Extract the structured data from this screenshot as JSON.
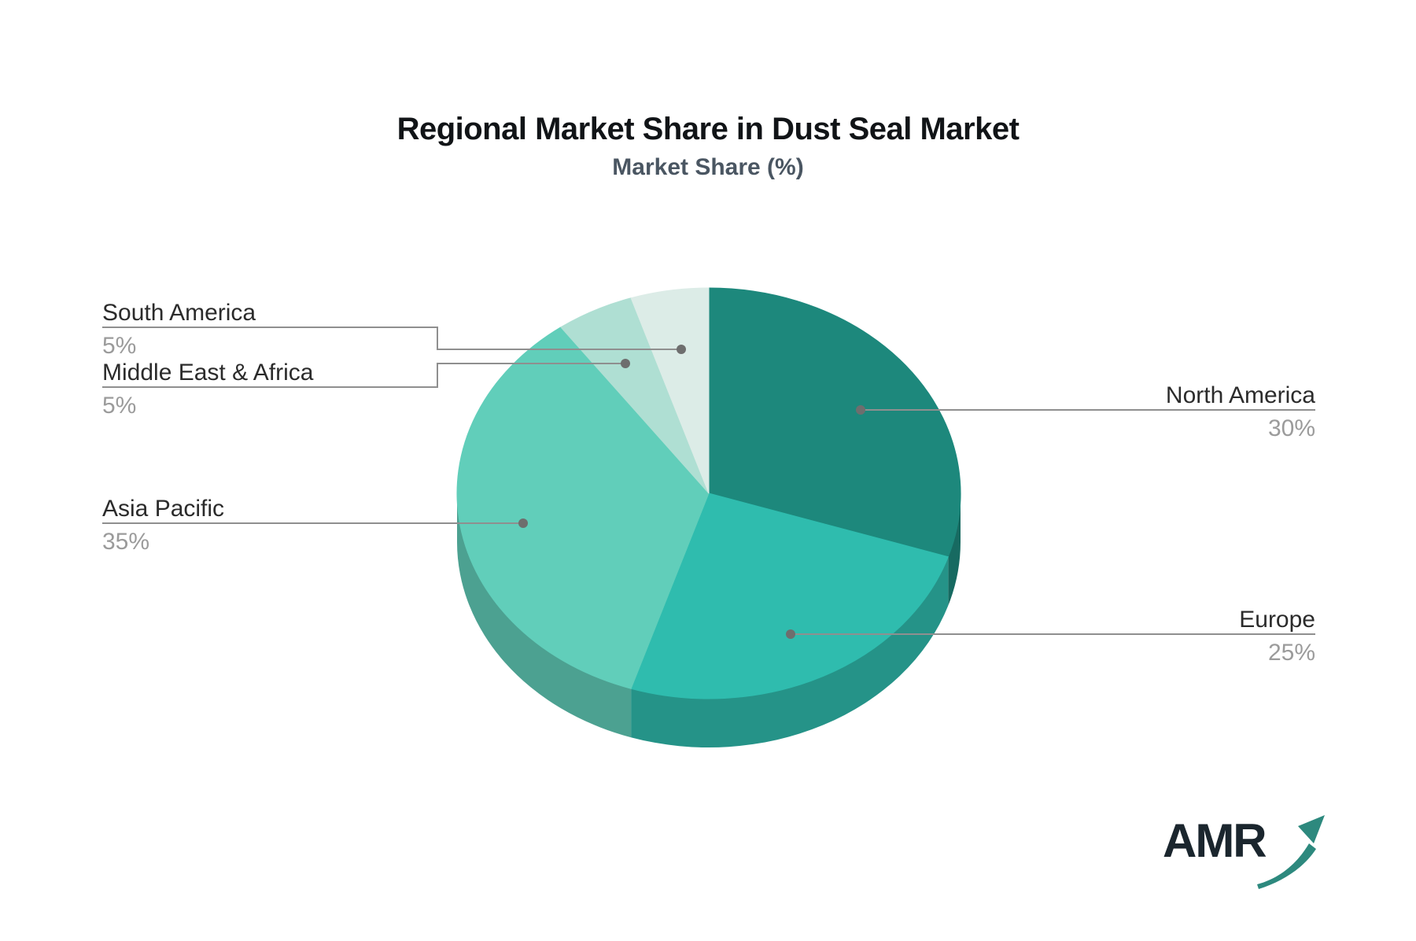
{
  "title": "Regional Market Share in Dust Seal Market",
  "subtitle": "Market Share (%)",
  "logo": {
    "text": "AMR"
  },
  "colors": {
    "background": "#ffffff",
    "title": "#111417",
    "subtitle": "#4a5662",
    "label": "#2b2b2b",
    "percent": "#9b9b9b",
    "connector_line": "#8f8f8f",
    "connector_dot": "#6e6e6e",
    "logo_text": "#1b262e",
    "logo_arrow": "#2d897e"
  },
  "chart_data": {
    "type": "pie",
    "style": "3d",
    "title": "Regional Market Share in Dust Seal Market",
    "subtitle": "Market Share (%)",
    "unit": "%",
    "start_angle_deg": 0,
    "direction": "clockwise",
    "legend": "none",
    "slices": [
      {
        "label": "North America",
        "value": 30,
        "display": "30%",
        "color": "#1d887c",
        "label_side": "right"
      },
      {
        "label": "Europe",
        "value": 25,
        "display": "25%",
        "color": "#2fbcae",
        "label_side": "right"
      },
      {
        "label": "Asia Pacific",
        "value": 35,
        "display": "35%",
        "color": "#61ceba",
        "label_side": "left"
      },
      {
        "label": "Middle East & Africa",
        "value": 5,
        "display": "5%",
        "color": "#afdfd3",
        "label_side": "left"
      },
      {
        "label": "South America",
        "value": 5,
        "display": "5%",
        "color": "#dcece7",
        "label_side": "left"
      }
    ]
  }
}
